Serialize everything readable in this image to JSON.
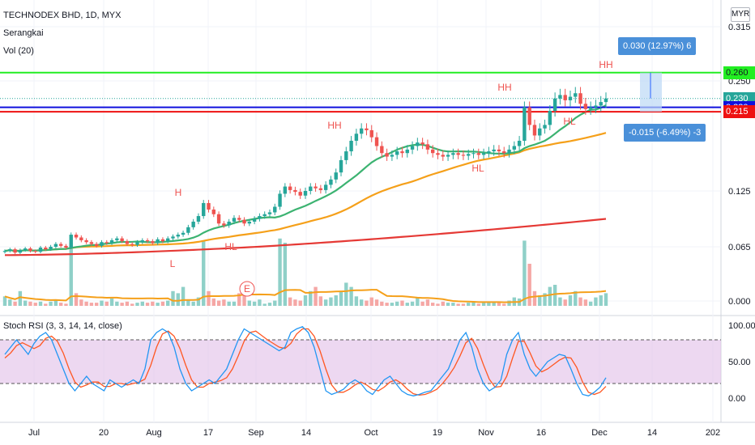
{
  "header": {
    "symbol_line": "TECHNODEX BHD, 1D, MYX",
    "indicator_1": "Serangkai",
    "indicator_2": "Vol (20)",
    "currency": "MYR"
  },
  "rsi": {
    "label": "Stoch RSI (3, 3, 14, 14, close)",
    "ticks": [
      "100.00",
      "50.00",
      "0.00"
    ]
  },
  "price_axis": {
    "ticks": [
      {
        "label": "0.315",
        "v": 0.315
      },
      {
        "label": "0.250",
        "v": 0.25
      },
      {
        "label": "0.125",
        "v": 0.125
      },
      {
        "label": "0.065",
        "v": 0.065
      },
      {
        "label": "0.000",
        "v": 0.0
      }
    ]
  },
  "price_tags": [
    {
      "label": "0.260",
      "v": 0.26,
      "bg": "#22ee22",
      "fg": "#131722"
    },
    {
      "label": "0.230",
      "v": 0.23,
      "bg": "#26a69a",
      "fg": "#ffffff"
    },
    {
      "label": "0.220",
      "v": 0.22,
      "bg": "#1010dd",
      "fg": "#ffffff"
    },
    {
      "label": "0.215",
      "v": 0.215,
      "bg": "#ee1111",
      "fg": "#ffffff"
    }
  ],
  "measure": {
    "up": "0.030 (12.97%) 6",
    "down": "-0.015 (-6.49%) -3"
  },
  "time_axis": [
    "Jul",
    "20",
    "Aug",
    "17",
    "Sep",
    "14",
    "Oct",
    "19",
    "Nov",
    "16",
    "Dec",
    "14",
    "202"
  ],
  "annotations": [
    {
      "text": "H",
      "color": "#ef5350"
    },
    {
      "text": "L",
      "color": "#ef5350"
    },
    {
      "text": "HL",
      "color": "#ef5350"
    },
    {
      "text": "HH",
      "color": "#ef5350"
    },
    {
      "text": "HL",
      "color": "#ef5350"
    },
    {
      "text": "HH",
      "color": "#ef5350"
    },
    {
      "text": "HL",
      "color": "#ef5350"
    },
    {
      "text": "HH",
      "color": "#ef5350"
    },
    {
      "text": "E",
      "color": "#ef5350"
    }
  ],
  "colors": {
    "up": "#26a69a",
    "down": "#ef5350",
    "ma_green": "#3cb371",
    "ma_orange": "#f5a01a",
    "ma_red": "#e53935",
    "hline_green": "#22ee22",
    "hline_blue": "#1010dd",
    "hline_red": "#ee1111",
    "rsi_k": "#2196f3",
    "rsi_d": "#ff5722",
    "rsi_band": "#e1bee7"
  },
  "chart_data": {
    "type": "candlestick",
    "closes": [
      0.06,
      0.062,
      0.058,
      0.061,
      0.063,
      0.06,
      0.059,
      0.064,
      0.062,
      0.065,
      0.068,
      0.066,
      0.064,
      0.078,
      0.075,
      0.072,
      0.07,
      0.068,
      0.066,
      0.07,
      0.069,
      0.072,
      0.074,
      0.071,
      0.068,
      0.067,
      0.07,
      0.072,
      0.071,
      0.069,
      0.073,
      0.071,
      0.074,
      0.076,
      0.078,
      0.08,
      0.086,
      0.092,
      0.098,
      0.112,
      0.105,
      0.1,
      0.09,
      0.088,
      0.092,
      0.096,
      0.094,
      0.09,
      0.092,
      0.095,
      0.098,
      0.1,
      0.102,
      0.108,
      0.122,
      0.13,
      0.126,
      0.124,
      0.12,
      0.125,
      0.13,
      0.128,
      0.126,
      0.132,
      0.138,
      0.146,
      0.16,
      0.17,
      0.182,
      0.19,
      0.196,
      0.194,
      0.186,
      0.176,
      0.168,
      0.164,
      0.166,
      0.17,
      0.168,
      0.172,
      0.176,
      0.18,
      0.178,
      0.172,
      0.168,
      0.166,
      0.164,
      0.166,
      0.168,
      0.166,
      0.165,
      0.167,
      0.168,
      0.166,
      0.168,
      0.17,
      0.172,
      0.17,
      0.168,
      0.172,
      0.176,
      0.182,
      0.22,
      0.2,
      0.188,
      0.196,
      0.2,
      0.216,
      0.23,
      0.234,
      0.228,
      0.232,
      0.236,
      0.224,
      0.218,
      0.22,
      0.222,
      0.226,
      0.23
    ],
    "volumes": [
      9,
      6,
      4,
      14,
      5,
      4,
      3,
      4,
      2,
      4,
      6,
      3,
      2,
      60,
      12,
      6,
      4,
      3,
      3,
      5,
      4,
      7,
      4,
      3,
      4,
      2,
      3,
      4,
      3,
      4,
      3,
      4,
      5,
      14,
      12,
      18,
      6,
      4,
      8,
      62,
      14,
      7,
      5,
      6,
      4,
      4,
      12,
      18,
      5,
      4,
      6,
      2,
      3,
      5,
      64,
      60,
      8,
      6,
      5,
      10,
      14,
      18,
      9,
      6,
      8,
      10,
      14,
      22,
      18,
      9,
      6,
      5,
      8,
      6,
      4,
      3,
      3,
      4,
      5,
      3,
      4,
      8,
      4,
      6,
      3,
      2,
      4,
      3,
      3,
      2,
      2,
      3,
      4,
      2,
      3,
      3,
      4,
      3,
      2,
      5,
      8,
      7,
      62,
      40,
      14,
      10,
      12,
      18,
      20,
      8,
      6,
      10,
      14,
      8,
      6,
      4,
      8,
      10,
      12
    ],
    "ma_green_last": 0.205,
    "ma_orange_last": 0.175,
    "ma_red_last": 0.095,
    "hlines": [
      0.26,
      0.22,
      0.215
    ],
    "dotted_last": 0.23,
    "ylim": [
      0,
      0.315
    ],
    "rsi_k": [
      60,
      70,
      80,
      70,
      60,
      75,
      85,
      90,
      80,
      60,
      40,
      20,
      10,
      20,
      30,
      20,
      15,
      10,
      25,
      20,
      15,
      20,
      25,
      20,
      40,
      80,
      90,
      95,
      90,
      70,
      40,
      20,
      10,
      15,
      20,
      25,
      20,
      30,
      40,
      60,
      80,
      95,
      90,
      85,
      80,
      75,
      70,
      65,
      70,
      90,
      95,
      98,
      90,
      70,
      40,
      10,
      5,
      8,
      12,
      20,
      25,
      20,
      10,
      5,
      15,
      25,
      30,
      20,
      10,
      5,
      3,
      5,
      8,
      10,
      20,
      30,
      40,
      60,
      80,
      90,
      70,
      40,
      20,
      10,
      15,
      25,
      60,
      80,
      90,
      60,
      40,
      30,
      40,
      50,
      55,
      60,
      58,
      40,
      20,
      5,
      3,
      8,
      15,
      28
    ],
    "rsi_d": [
      55,
      62,
      72,
      76,
      72,
      68,
      72,
      82,
      85,
      78,
      62,
      40,
      22,
      15,
      18,
      22,
      22,
      16,
      16,
      20,
      20,
      18,
      20,
      22,
      26,
      45,
      70,
      88,
      92,
      85,
      68,
      45,
      25,
      15,
      15,
      20,
      22,
      24,
      28,
      40,
      58,
      78,
      90,
      92,
      86,
      80,
      75,
      70,
      68,
      75,
      88,
      95,
      95,
      85,
      65,
      40,
      18,
      8,
      8,
      12,
      18,
      22,
      18,
      12,
      10,
      15,
      22,
      25,
      20,
      12,
      6,
      4,
      5,
      8,
      12,
      20,
      30,
      42,
      58,
      76,
      82,
      68,
      46,
      26,
      15,
      16,
      30,
      55,
      78,
      78,
      62,
      44,
      36,
      40,
      46,
      52,
      56,
      55,
      42,
      22,
      8,
      5,
      8,
      16
    ]
  }
}
